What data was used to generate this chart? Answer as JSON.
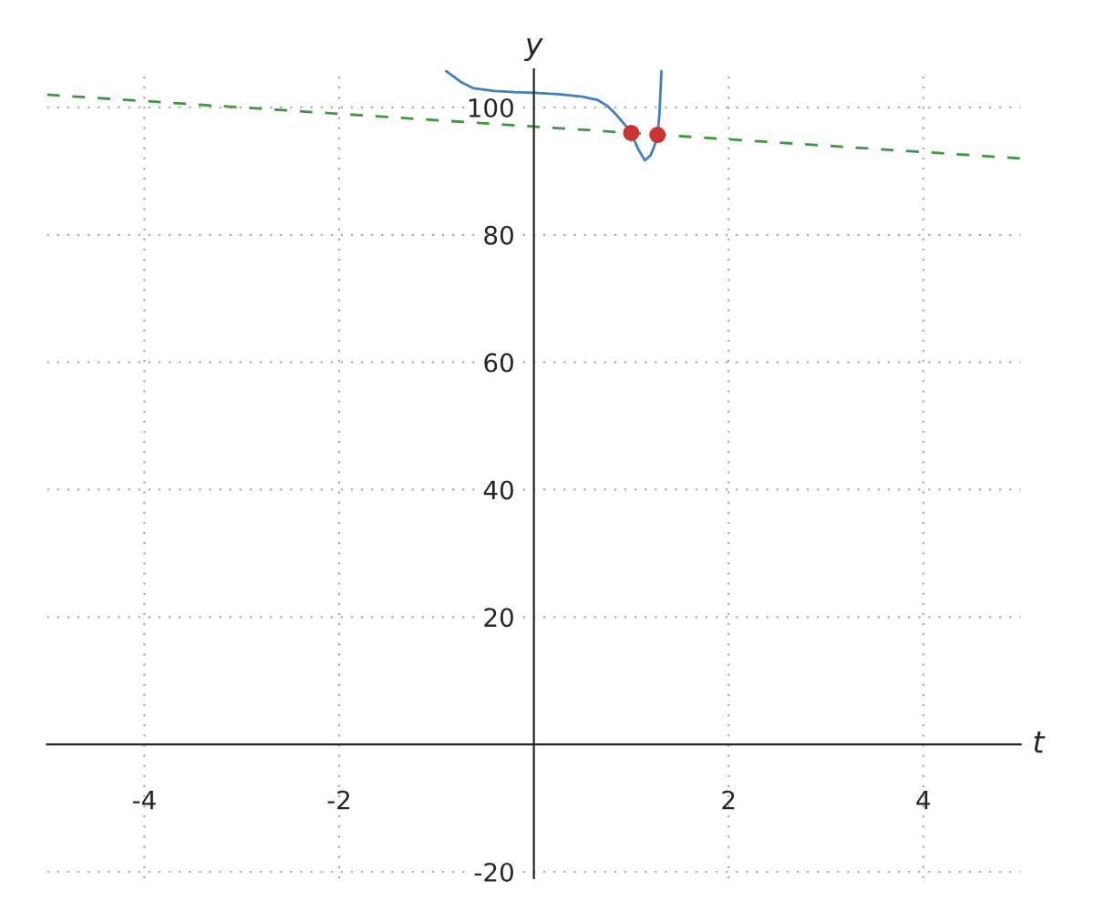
{
  "chart_data": {
    "type": "line",
    "xlabel": "t",
    "ylabel": "y",
    "xlim": [
      -5,
      5
    ],
    "ylim": [
      -21,
      106
    ],
    "xticks": [
      -4,
      -2,
      2,
      4
    ],
    "yticks": [
      -20,
      20,
      40,
      60,
      80,
      100
    ],
    "grid": true,
    "series": [
      {
        "color": "#3f7fc4",
        "line_style": "solid",
        "x": [
          -0.9,
          -0.75,
          -0.62,
          -0.4,
          -0.2,
          0,
          0.25,
          0.5,
          0.65,
          0.75,
          0.85,
          0.95,
          1.0,
          1.07,
          1.14,
          1.2,
          1.25,
          1.27,
          1.29,
          1.31
        ],
        "values": [
          105.7,
          104,
          103,
          102.6,
          102.4,
          102.3,
          102.1,
          101.7,
          101.2,
          100.3,
          98.8,
          97,
          96,
          93.5,
          91.7,
          92.5,
          94.5,
          95.7,
          99,
          105.7
        ]
      },
      {
        "color": "#3a9a3a",
        "line_style": "dashed",
        "x": [
          -5,
          5
        ],
        "values": [
          102,
          92
        ]
      },
      {
        "type": "scatter",
        "color": "#cc3333",
        "marker": "circle",
        "x": [
          1.0,
          1.27
        ],
        "values": [
          96,
          95.7
        ]
      }
    ]
  }
}
